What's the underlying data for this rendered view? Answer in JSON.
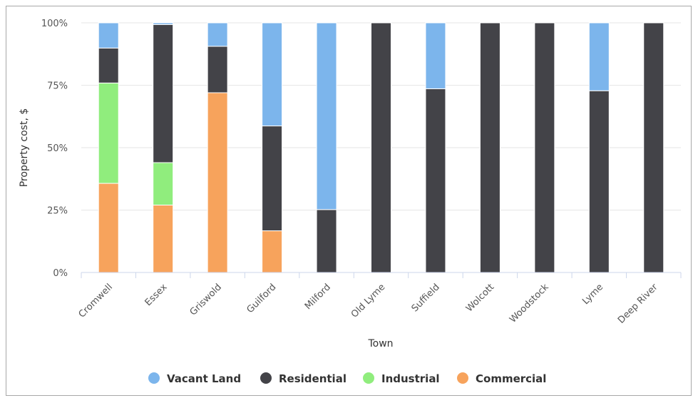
{
  "chart_data": {
    "type": "bar",
    "stacked": true,
    "normalized": true,
    "xlabel": "Town",
    "ylabel": "Property cost, $",
    "categories": [
      "Cromwell",
      "Essex",
      "Griswold",
      "Guilford",
      "Milford",
      "Old Lyme",
      "Suffield",
      "Wolcott",
      "Woodstock",
      "Lyme",
      "Deep River"
    ],
    "y_ticks": [
      "0%",
      "25%",
      "50%",
      "75%",
      "100%"
    ],
    "ylim": [
      0,
      100
    ],
    "grid": true,
    "legend_position": "bottom",
    "series": [
      {
        "name": "Commercial",
        "color": "#f7a35c",
        "values": [
          35.7,
          27,
          72,
          16.7,
          0,
          0,
          0,
          0,
          0,
          0,
          0
        ]
      },
      {
        "name": "Industrial",
        "color": "#90ed7d",
        "values": [
          40.2,
          17,
          0,
          0,
          0,
          0,
          0,
          0,
          0,
          0,
          0
        ]
      },
      {
        "name": "Residential",
        "color": "#434348",
        "values": [
          14,
          55.3,
          18.6,
          42,
          25.2,
          100,
          73.6,
          100,
          100,
          72.8,
          100
        ]
      },
      {
        "name": "Vacant Land",
        "color": "#7cb5ec",
        "values": [
          10.1,
          0.7,
          9.4,
          41.3,
          74.8,
          0,
          26.4,
          0,
          0,
          27.2,
          0
        ]
      }
    ],
    "legend_order": [
      "Vacant Land",
      "Residential",
      "Industrial",
      "Commercial"
    ]
  }
}
